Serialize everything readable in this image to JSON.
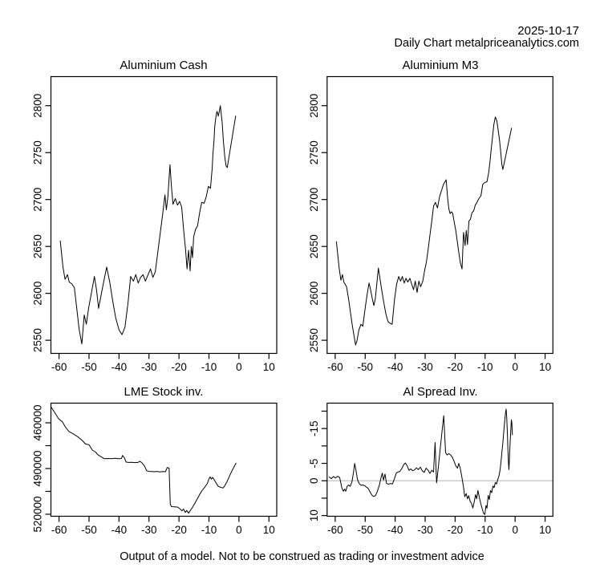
{
  "header": {
    "date": "2025-10-17",
    "source": "Daily Chart metalpriceanalytics.com"
  },
  "footer": {
    "disclaimer": "Output of a model. Not to be construed as trading or investment advice"
  },
  "colors": {
    "line": "#000000",
    "zero_line": "#c3c3c3",
    "axis": "#000000",
    "background": "#ffffff"
  },
  "chart_data": [
    {
      "type": "line",
      "title": "Aluminium Cash",
      "xlim": [
        -62.7,
        12.6
      ],
      "ylim_top_bottom": [
        2831,
        2536
      ],
      "xticks": [
        -60,
        -50,
        -40,
        -30,
        -20,
        -10,
        0,
        10
      ],
      "yticks": [
        2550,
        2600,
        2650,
        2700,
        2750,
        2800
      ],
      "ylabels": [
        "2550",
        "2600",
        "2650",
        "2700",
        "2750",
        "2800"
      ],
      "x": [
        -59.6,
        -58.7,
        -58.0,
        -57.2,
        -56.6,
        -55.7,
        -54.9,
        -54.1,
        -53.3,
        -52.4,
        -51.6,
        -50.9,
        -50.1,
        -49.1,
        -48.2,
        -47.5,
        -46.8,
        -45.5,
        -44.1,
        -43.1,
        -42.1,
        -41.1,
        -40.0,
        -39.0,
        -38.0,
        -37.0,
        -36.1,
        -35.2,
        -34.4,
        -33.6,
        -32.8,
        -32.0,
        -31.2,
        -30.3,
        -29.5,
        -28.7,
        -27.9,
        -27.1,
        -26.3,
        -25.4,
        -24.7,
        -24.2,
        -23.7,
        -23.0,
        -22.5,
        -22.0,
        -21.2,
        -20.5,
        -19.8,
        -19.1,
        -18.4,
        -17.8,
        -17.3,
        -16.8,
        -16.3,
        -15.9,
        -15.5,
        -15.1,
        -14.5,
        -13.8,
        -13.1,
        -12.4,
        -11.6,
        -10.9,
        -10.2,
        -9.5,
        -8.9,
        -8.7,
        -8.3,
        -8.1,
        -7.8,
        -7.5,
        -7.3,
        -6.9,
        -6.6,
        -6.2,
        -5.6,
        -5.2,
        -4.7,
        -4.3,
        -3.9,
        -1.1
      ],
      "values": [
        2656,
        2628,
        2615,
        2620,
        2612,
        2610,
        2606,
        2584,
        2562,
        2546,
        2577,
        2567,
        2585,
        2602,
        2618,
        2604,
        2584,
        2606,
        2628,
        2612,
        2592,
        2574,
        2561,
        2556,
        2564,
        2590,
        2618,
        2613,
        2620,
        2611,
        2617,
        2620,
        2613,
        2620,
        2626,
        2617,
        2623,
        2643,
        2663,
        2685,
        2705,
        2689,
        2703,
        2737,
        2713,
        2695,
        2701,
        2694,
        2698,
        2692,
        2666,
        2646,
        2626,
        2646,
        2624,
        2650,
        2638,
        2660,
        2668,
        2672,
        2686,
        2697,
        2696,
        2703,
        2714,
        2712,
        2734,
        2748,
        2764,
        2777,
        2785,
        2792,
        2794,
        2789,
        2793,
        2800,
        2782,
        2762,
        2745,
        2736,
        2734,
        2789
      ]
    },
    {
      "type": "line",
      "title": "Aluminium M3",
      "xlim": [
        -62.7,
        12.6
      ],
      "ylim_top_bottom": [
        2831,
        2536
      ],
      "xticks": [
        -60,
        -50,
        -40,
        -30,
        -20,
        -10,
        0,
        10
      ],
      "yticks": [
        2550,
        2600,
        2650,
        2700,
        2750,
        2800
      ],
      "ylabels": [
        "2550",
        "2600",
        "2650",
        "2700",
        "2750",
        "2800"
      ],
      "x": [
        -59.6,
        -58.7,
        -58.1,
        -57.6,
        -57.1,
        -56.2,
        -55.4,
        -54.9,
        -54.3,
        -53.8,
        -53.2,
        -52.7,
        -52.1,
        -51.4,
        -50.8,
        -49.9,
        -49.3,
        -48.7,
        -48.2,
        -47.6,
        -47.1,
        -46.6,
        -46.0,
        -45.6,
        -45.0,
        -44.5,
        -43.8,
        -43.1,
        -42.4,
        -41.7,
        -41.0,
        -40.2,
        -39.5,
        -38.8,
        -38.2,
        -37.6,
        -37.0,
        -36.4,
        -35.8,
        -35.1,
        -34.5,
        -33.9,
        -33.3,
        -32.7,
        -32.1,
        -31.5,
        -30.8,
        -30.2,
        -29.6,
        -29.0,
        -28.4,
        -27.8,
        -27.2,
        -26.6,
        -25.9,
        -25.2,
        -23.9,
        -23.0,
        -22.5,
        -22.1,
        -21.7,
        -21.2,
        -20.8,
        -20.3,
        -19.8,
        -19.3,
        -18.8,
        -18.3,
        -17.7,
        -17.2,
        -16.7,
        -16.3,
        -15.9,
        -15.4,
        -14.9,
        -14.4,
        -13.8,
        -13.3,
        -12.7,
        -12.1,
        -11.4,
        -10.8,
        -10.2,
        -9.4,
        -8.8,
        -8.4,
        -8.0,
        -7.6,
        -7.1,
        -6.6,
        -6.1,
        -5.7,
        -5.2,
        -4.8,
        -4.4,
        -4.1,
        -1.2
      ],
      "values": [
        2655,
        2627,
        2614,
        2620,
        2612,
        2607,
        2591,
        2579,
        2566,
        2556,
        2545,
        2550,
        2561,
        2567,
        2565,
        2587,
        2600,
        2611,
        2604,
        2594,
        2587,
        2595,
        2614,
        2627,
        2614,
        2604,
        2590,
        2578,
        2570,
        2568,
        2567,
        2594,
        2610,
        2618,
        2613,
        2618,
        2611,
        2616,
        2612,
        2616,
        2610,
        2604,
        2613,
        2601,
        2613,
        2607,
        2613,
        2624,
        2633,
        2647,
        2662,
        2677,
        2693,
        2697,
        2691,
        2703,
        2716,
        2721,
        2701,
        2690,
        2685,
        2687,
        2685,
        2676,
        2667,
        2656,
        2644,
        2633,
        2626,
        2665,
        2651,
        2667,
        2652,
        2677,
        2679,
        2686,
        2688,
        2694,
        2697,
        2701,
        2704,
        2716,
        2718,
        2719,
        2729,
        2740,
        2753,
        2765,
        2780,
        2788,
        2784,
        2775,
        2763,
        2750,
        2737,
        2732,
        2776
      ]
    },
    {
      "type": "line",
      "title": "LME Stock inv.",
      "xlim": [
        -62.7,
        12.6
      ],
      "ylim_top_bottom": [
        447100,
        521320
      ],
      "xticks": [
        -60,
        -50,
        -40,
        -30,
        -20,
        -10,
        0,
        10
      ],
      "yticks": [
        460000,
        475000,
        490000,
        505000,
        520000
      ],
      "ylabels": [
        "460000",
        "",
        "490000",
        "",
        "520000"
      ],
      "x": [
        -62.5,
        -61.4,
        -60.1,
        -58.9,
        -57.8,
        -56.7,
        -55.6,
        -54.4,
        -53.4,
        -52.2,
        -51.2,
        -50.0,
        -48.9,
        -47.8,
        -47.1,
        -46.0,
        -44.9,
        -43.7,
        -42.5,
        -41.3,
        -40.0,
        -39.2,
        -38.8,
        -38.2,
        -37.6,
        -36.8,
        -35.8,
        -34.7,
        -33.7,
        -33.0,
        -32.3,
        -31.5,
        -30.8,
        -30.0,
        -29.1,
        -28.2,
        -27.3,
        -26.4,
        -25.4,
        -24.5,
        -23.9,
        -23.3,
        -22.9,
        -22.5,
        -21.5,
        -20.4,
        -19.6,
        -19.0,
        -18.5,
        -17.9,
        -17.4,
        -16.8,
        -16.1,
        -15.5,
        -14.7,
        -13.9,
        -13.1,
        -12.3,
        -11.4,
        -10.6,
        -10.0,
        -9.6,
        -9.2,
        -8.8,
        -8.2,
        -7.6,
        -6.9,
        -6.1,
        -5.3,
        -4.7,
        -4.1,
        -3.5,
        -2.9,
        -2.2,
        -1.6,
        -1.0
      ],
      "values": [
        450000,
        453400,
        457400,
        459300,
        463000,
        465700,
        466900,
        468300,
        469700,
        471800,
        473900,
        474400,
        477900,
        479200,
        480900,
        482200,
        483600,
        483400,
        483600,
        483300,
        483600,
        483400,
        481400,
        483000,
        485800,
        486000,
        485900,
        486100,
        486000,
        485200,
        486300,
        488300,
        491400,
        491900,
        492000,
        492100,
        491900,
        492200,
        492000,
        492100,
        489300,
        489800,
        513500,
        515000,
        515100,
        515300,
        516600,
        517800,
        516600,
        518800,
        517500,
        519300,
        517200,
        515500,
        512800,
        510000,
        507000,
        504500,
        502200,
        500000,
        496800,
        495500,
        497000,
        495800,
        497500,
        499600,
        501700,
        502300,
        502800,
        501200,
        499000,
        496500,
        493800,
        491000,
        488800,
        486500
      ]
    },
    {
      "type": "line",
      "title": "Al Spread Inv.",
      "xlim": [
        -62.7,
        12.6
      ],
      "ylim_top_bottom": [
        -22.3,
        10.2
      ],
      "xticks": [
        -60,
        -50,
        -40,
        -30,
        -20,
        -10,
        0,
        10
      ],
      "yticks": [
        -20,
        -15,
        -10,
        -5,
        0,
        5,
        10
      ],
      "ylabels": [
        "",
        "-15",
        "",
        "-5",
        "0",
        "",
        "10"
      ],
      "refline": 0,
      "x": [
        -62.0,
        -61.3,
        -60.6,
        -59.9,
        -59.2,
        -58.5,
        -57.8,
        -57.3,
        -56.9,
        -56.5,
        -56.0,
        -55.5,
        -55.0,
        -54.4,
        -53.9,
        -53.5,
        -53.0,
        -52.6,
        -52.0,
        -51.4,
        -50.8,
        -50.2,
        -49.6,
        -49.0,
        -48.4,
        -47.8,
        -47.2,
        -46.6,
        -46.0,
        -45.3,
        -44.8,
        -44.3,
        -43.9,
        -43.4,
        -42.9,
        -42.3,
        -41.6,
        -40.9,
        -40.2,
        -39.6,
        -39.0,
        -38.4,
        -37.8,
        -37.1,
        -36.6,
        -36.0,
        -35.4,
        -34.8,
        -34.2,
        -33.6,
        -32.9,
        -32.3,
        -31.6,
        -31.0,
        -30.3,
        -29.7,
        -29.0,
        -28.4,
        -27.8,
        -27.2,
        -26.7,
        -26.2,
        -25.6,
        -25.0,
        -24.4,
        -23.8,
        -23.2,
        -22.7,
        -22.1,
        -21.5,
        -21.0,
        -20.4,
        -19.8,
        -19.2,
        -18.8,
        -18.3,
        -17.7,
        -17.2,
        -16.8,
        -16.3,
        -15.9,
        -15.5,
        -15.0,
        -14.6,
        -14.1,
        -13.6,
        -13.2,
        -12.8,
        -12.4,
        -11.9,
        -11.5,
        -11.0,
        -10.5,
        -10.1,
        -9.7,
        -9.4,
        -9.0,
        -8.6,
        -8.2,
        -7.8,
        -7.4,
        -7.0,
        -6.6,
        -6.2,
        -5.8,
        -5.4,
        -5.0,
        -4.7,
        -4.4,
        -4.1,
        -3.8,
        -3.5,
        -3.2,
        -3.0,
        -2.8,
        -2.6,
        -2.4,
        -2.2,
        -2.05,
        -1.85,
        -1.65,
        -1.45,
        -1.25,
        -1.1,
        -0.9
      ],
      "values": [
        -1.1,
        -0.6,
        -1.2,
        -0.8,
        -1.3,
        -0.9,
        2.0,
        3.0,
        2.4,
        3.0,
        1.6,
        1.2,
        1.6,
        0.3,
        -2.4,
        -5.0,
        -2.6,
        -0.4,
        0.8,
        1.3,
        1.2,
        1.4,
        1.8,
        2.2,
        3.2,
        4.1,
        4.5,
        4.3,
        3.2,
        1.4,
        -0.6,
        -2.2,
        -0.2,
        -1.9,
        0.7,
        1.0,
        0.8,
        0.9,
        -0.7,
        -2.3,
        -2.5,
        -2.7,
        -3.5,
        -4.7,
        -5.1,
        -4.3,
        -3.0,
        -3.4,
        -2.9,
        -3.1,
        -3.7,
        -3.2,
        -3.9,
        -2.9,
        -2.4,
        -3.6,
        -3.0,
        -2.1,
        -3.0,
        -2.5,
        -11.0,
        0.6,
        -4.0,
        -9.0,
        -14.0,
        -18.7,
        -8.1,
        -7.4,
        -7.8,
        -7.4,
        -6.8,
        -5.7,
        -4.3,
        -3.6,
        -5.0,
        -3.6,
        -0.8,
        1.9,
        4.6,
        3.7,
        5.2,
        4.3,
        5.9,
        6.4,
        7.8,
        5.9,
        4.0,
        5.2,
        2.8,
        4.9,
        6.4,
        8.0,
        9.4,
        9.7,
        7.1,
        7.9,
        4.2,
        5.4,
        2.8,
        3.4,
        1.5,
        2.0,
        0.5,
        0.9,
        -0.3,
        -1.3,
        -3.2,
        -5.5,
        -8.2,
        -10.9,
        -14.0,
        -16.8,
        -19.5,
        -20.6,
        -18.3,
        -14.0,
        -9.0,
        -4.7,
        -3.2,
        -7.5,
        -11.0,
        -14.5,
        -17.5,
        -16.7,
        -13.2
      ]
    }
  ]
}
